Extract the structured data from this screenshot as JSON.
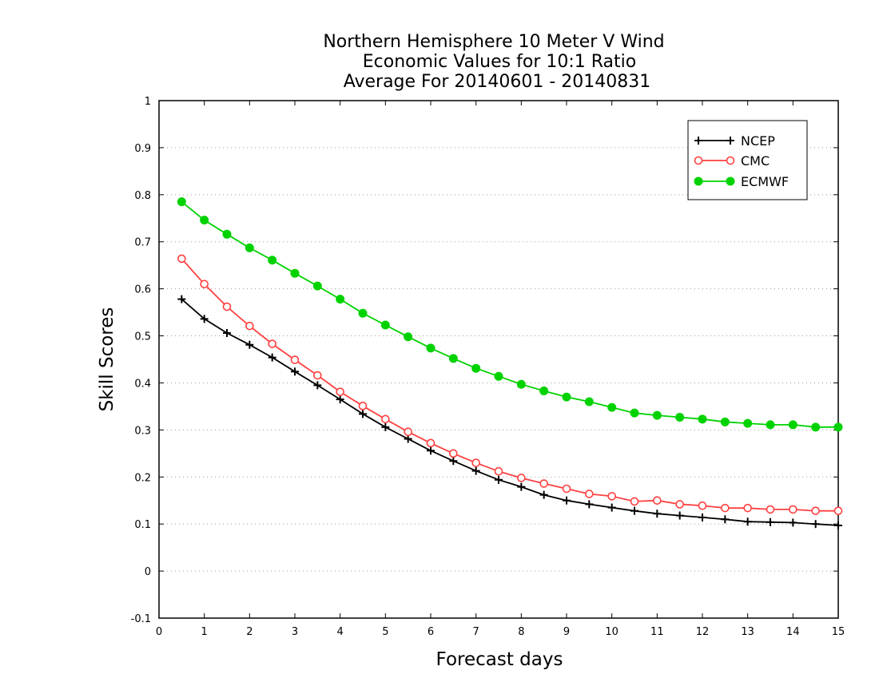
{
  "chart_data": {
    "type": "line",
    "title_lines": [
      "Northern Hemisphere 10 Meter V Wind",
      "Economic Values for 10:1 Ratio",
      "Average For 20140601 - 20140831"
    ],
    "xlabel": "Forecast days",
    "ylabel": "Skill Scores",
    "xlim": [
      0,
      15
    ],
    "ylim": [
      -0.1,
      1
    ],
    "x_ticks": [
      "0",
      "1",
      "2",
      "3",
      "4",
      "5",
      "6",
      "7",
      "8",
      "9",
      "10",
      "11",
      "12",
      "13",
      "14",
      "15"
    ],
    "y_ticks": [
      "-0.1",
      "0",
      "0.1",
      "0.2",
      "0.3",
      "0.4",
      "0.5",
      "0.6",
      "0.7",
      "0.8",
      "0.9",
      "1"
    ],
    "grid": "horizontal-dotted",
    "legend_position": "top-right",
    "x": [
      0.5,
      1,
      1.5,
      2,
      2.5,
      3,
      3.5,
      4,
      4.5,
      5,
      5.5,
      6,
      6.5,
      7,
      7.5,
      8,
      8.5,
      9,
      9.5,
      10,
      10.5,
      11,
      11.5,
      12,
      12.5,
      13,
      13.5,
      14,
      14.5,
      15
    ],
    "series": [
      {
        "name": "NCEP",
        "color": "#000000",
        "marker": "plus",
        "values": [
          0.578,
          0.536,
          0.506,
          0.481,
          0.454,
          0.424,
          0.395,
          0.365,
          0.334,
          0.306,
          0.281,
          0.256,
          0.234,
          0.213,
          0.194,
          0.179,
          0.162,
          0.15,
          0.142,
          0.135,
          0.128,
          0.122,
          0.118,
          0.114,
          0.11,
          0.105,
          0.104,
          0.103,
          0.1,
          0.097
        ]
      },
      {
        "name": "CMC",
        "color": "#ff4040",
        "marker": "open-circle",
        "values": [
          0.664,
          0.61,
          0.562,
          0.521,
          0.483,
          0.449,
          0.416,
          0.381,
          0.351,
          0.323,
          0.296,
          0.272,
          0.25,
          0.23,
          0.212,
          0.198,
          0.186,
          0.175,
          0.164,
          0.159,
          0.148,
          0.15,
          0.142,
          0.139,
          0.134,
          0.134,
          0.131,
          0.131,
          0.128,
          0.128
        ]
      },
      {
        "name": "ECMWF",
        "color": "#00d200",
        "marker": "filled-circle",
        "values": [
          0.785,
          0.746,
          0.716,
          0.687,
          0.661,
          0.633,
          0.606,
          0.578,
          0.548,
          0.523,
          0.498,
          0.474,
          0.452,
          0.431,
          0.414,
          0.397,
          0.383,
          0.37,
          0.36,
          0.348,
          0.336,
          0.331,
          0.327,
          0.323,
          0.317,
          0.314,
          0.311,
          0.311,
          0.306,
          0.306
        ]
      }
    ]
  }
}
